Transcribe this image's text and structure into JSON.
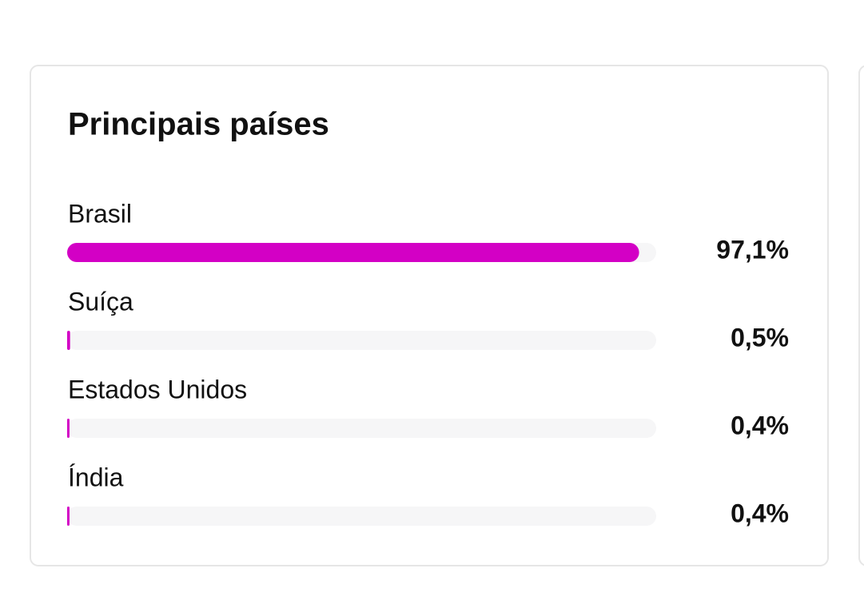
{
  "chart_data": {
    "type": "bar",
    "orientation": "horizontal",
    "title": "Principais países",
    "categories": [
      "Brasil",
      "Suíça",
      "Estados Unidos",
      "Índia"
    ],
    "values": [
      97.1,
      0.5,
      0.4,
      0.4
    ],
    "value_labels": [
      "97,1%",
      "0,5%",
      "0,4%",
      "0,4%"
    ],
    "color": "#d300c5",
    "xlim": [
      0,
      100
    ]
  }
}
